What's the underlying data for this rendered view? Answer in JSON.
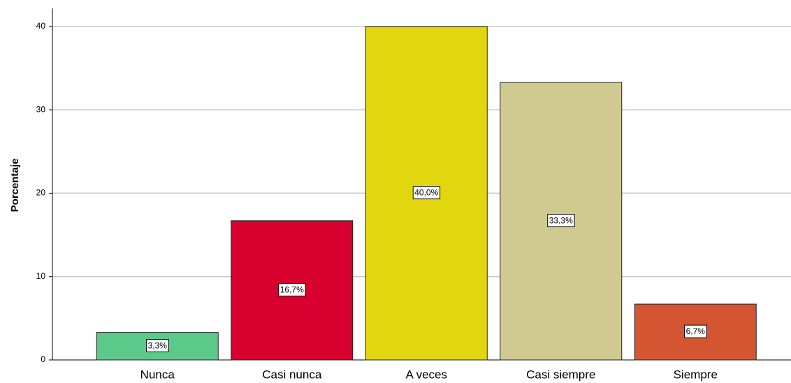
{
  "chart_data": {
    "type": "bar",
    "y_label": "Porcentaje",
    "categories": [
      "Nunca",
      "Casi nunca",
      "A veces",
      "Casi siempre",
      "Siempre"
    ],
    "values": [
      3.3,
      16.7,
      40.0,
      33.3,
      6.7
    ],
    "value_labels": [
      "3,3%",
      "16,7%",
      "40,0%",
      "33,3%",
      "6,7%"
    ],
    "colors": [
      "#5bc98a",
      "#d8002f",
      "#e2d70e",
      "#d0c990",
      "#d45532"
    ],
    "ylim": [
      0,
      42
    ],
    "yticks": [
      0,
      10,
      20,
      30,
      40
    ],
    "grid": true
  }
}
